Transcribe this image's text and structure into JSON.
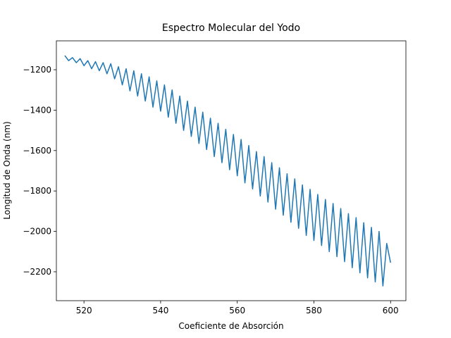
{
  "chart_data": {
    "type": "line",
    "title": "Espectro Molecular del Yodo",
    "x_label": "Coeficiente de Absorción",
    "y_label": "Longitud de Onda (nm)",
    "x": [
      515,
      516,
      517,
      518,
      519,
      520,
      521,
      522,
      523,
      524,
      525,
      526,
      527,
      528,
      529,
      530,
      531,
      532,
      533,
      534,
      535,
      536,
      537,
      538,
      539,
      540,
      541,
      542,
      543,
      544,
      545,
      546,
      547,
      548,
      549,
      550,
      551,
      552,
      553,
      554,
      555,
      556,
      557,
      558,
      559,
      560,
      561,
      562,
      563,
      564,
      565,
      566,
      567,
      568,
      569,
      570,
      571,
      572,
      573,
      574,
      575,
      576,
      577,
      578,
      579,
      580,
      581,
      582,
      583,
      584,
      585,
      586,
      587,
      588,
      589,
      590,
      591,
      592,
      593,
      594,
      595,
      596,
      597,
      598,
      599,
      600
    ],
    "series": [
      {
        "color": "#1f77b4",
        "values": [
          -1130,
          -1155,
          -1140,
          -1165,
          -1145,
          -1180,
          -1155,
          -1195,
          -1160,
          -1205,
          -1165,
          -1220,
          -1170,
          -1245,
          -1185,
          -1275,
          -1195,
          -1305,
          -1205,
          -1330,
          -1220,
          -1355,
          -1235,
          -1385,
          -1255,
          -1405,
          -1275,
          -1435,
          -1300,
          -1465,
          -1330,
          -1500,
          -1355,
          -1530,
          -1385,
          -1565,
          -1410,
          -1595,
          -1440,
          -1630,
          -1465,
          -1660,
          -1495,
          -1695,
          -1520,
          -1725,
          -1545,
          -1760,
          -1575,
          -1790,
          -1605,
          -1825,
          -1630,
          -1855,
          -1660,
          -1890,
          -1685,
          -1920,
          -1715,
          -1955,
          -1740,
          -1985,
          -1770,
          -2020,
          -1792,
          -2045,
          -1817,
          -2070,
          -1842,
          -2100,
          -1862,
          -2125,
          -1887,
          -2150,
          -1912,
          -2180,
          -1932,
          -2205,
          -1957,
          -2230,
          -1980,
          -2250,
          -2000,
          -2270,
          -2060,
          -2155
        ]
      }
    ],
    "xlim": [
      512.8,
      604.0
    ],
    "ylim": [
      -2343,
      -1057
    ],
    "xticks": [
      520,
      540,
      560,
      580,
      600
    ],
    "yticks": [
      {
        "value": -2200,
        "label": "−2200"
      },
      {
        "value": -2000,
        "label": "−2000"
      },
      {
        "value": -1800,
        "label": "−1800"
      },
      {
        "value": -1600,
        "label": "−1600"
      },
      {
        "value": -1400,
        "label": "−1400"
      },
      {
        "value": -1200,
        "label": "−1200"
      }
    ]
  }
}
